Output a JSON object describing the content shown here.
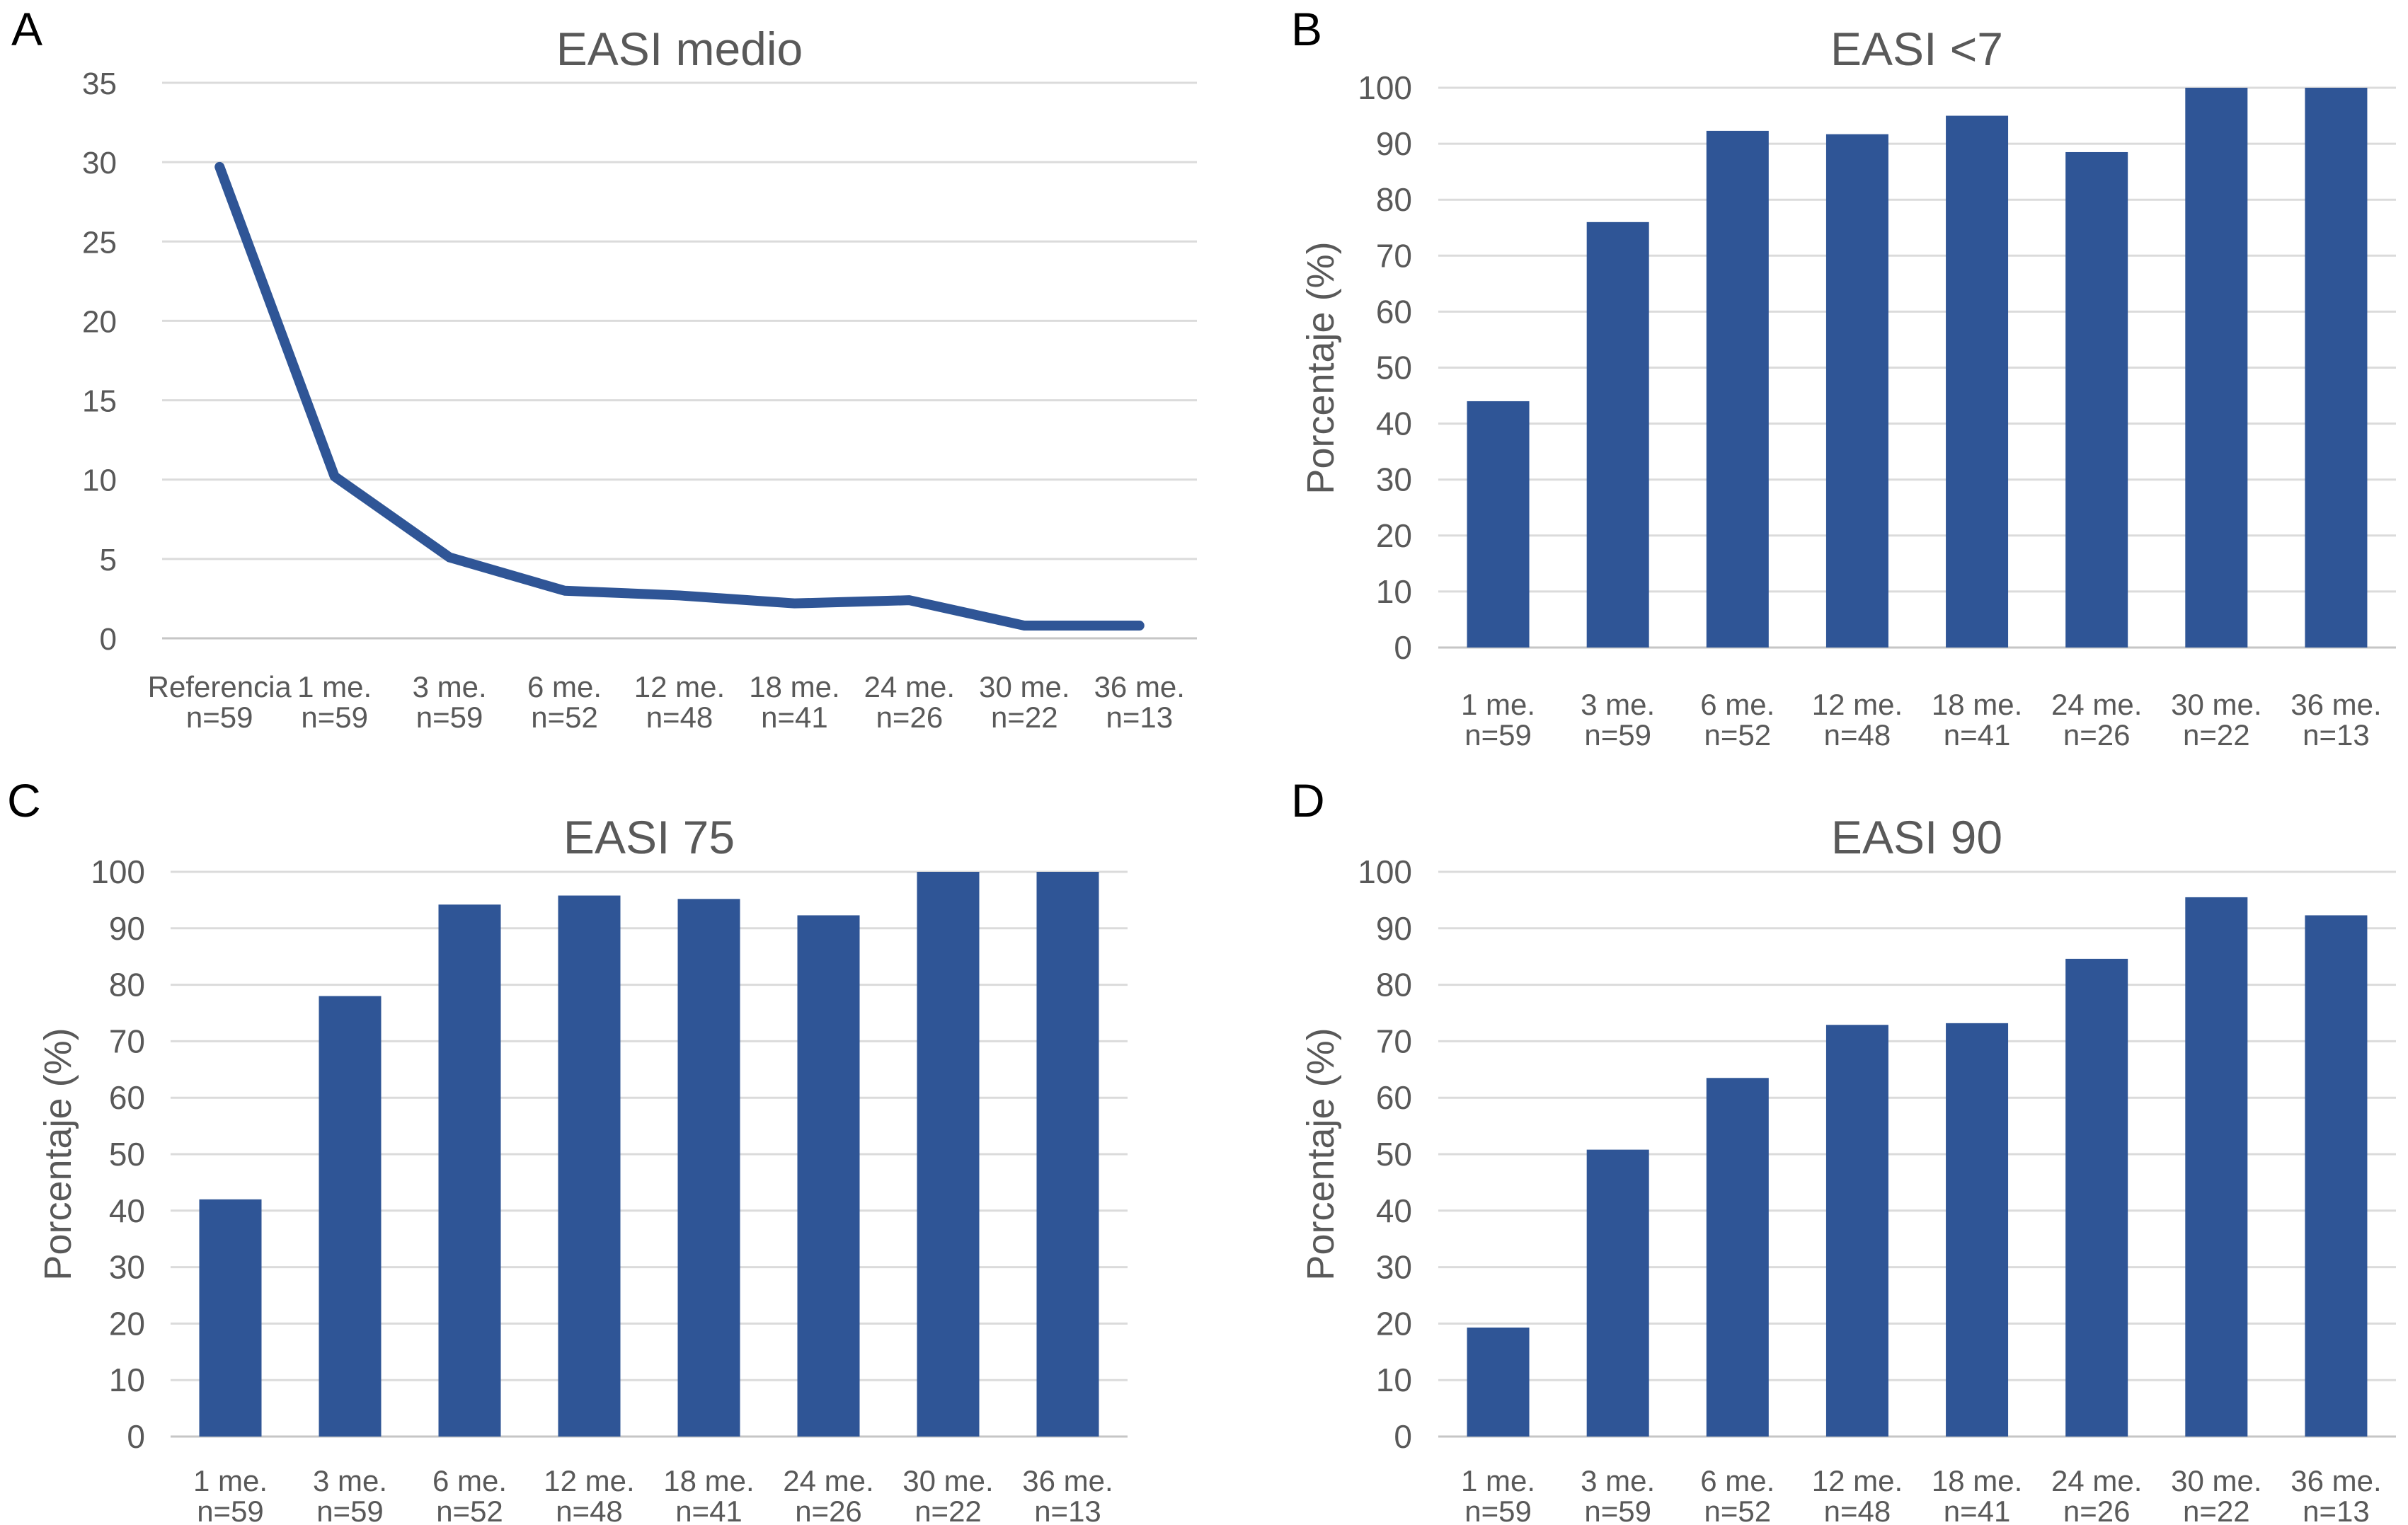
{
  "page": {
    "background": "#ffffff",
    "description": "Four-panel EASI outcomes figure"
  },
  "colors": {
    "series_blue": "#2F5596",
    "gridline": "#DBDBDB",
    "zero_axis_line": "#C6C6C6",
    "text_gray": "#595959",
    "panel_letter_black": "#000000"
  },
  "chart_data": [
    {
      "panel_letter": "A",
      "type": "line",
      "title": "EASI medio",
      "ylabel": "",
      "ylim": [
        0,
        35
      ],
      "ytick_step": 5,
      "grid": true,
      "legend": "none",
      "categories": [
        "Referencia",
        "1 me.",
        "3 me.",
        "6 me.",
        "12 me.",
        "18 me.",
        "24 me.",
        "30 me.",
        "36 me."
      ],
      "counts": [
        "n=59",
        "n=59",
        "n=59",
        "n=52",
        "n=48",
        "n=41",
        "n=26",
        "n=22",
        "n=13"
      ],
      "values": [
        29.7,
        10.2,
        5.1,
        3.0,
        2.7,
        2.2,
        2.4,
        0.8,
        0.8
      ]
    },
    {
      "panel_letter": "B",
      "type": "bar",
      "title": "EASI <7",
      "ylabel": "Porcentaje (%)",
      "ylim": [
        0,
        100
      ],
      "ytick_step": 10,
      "grid": true,
      "legend": "none",
      "categories": [
        "1 me.",
        "3 me.",
        "6 me.",
        "12 me.",
        "18 me.",
        "24 me.",
        "30 me.",
        "36 me."
      ],
      "counts": [
        "n=59",
        "n=59",
        "n=52",
        "n=48",
        "n=41",
        "n=26",
        "n=22",
        "n=13"
      ],
      "values": [
        44,
        76,
        92.3,
        91.7,
        95,
        88.5,
        100,
        100
      ]
    },
    {
      "panel_letter": "C",
      "type": "bar",
      "title": "EASI 75",
      "ylabel": "Porcentaje (%)",
      "ylim": [
        0,
        100
      ],
      "ytick_step": 10,
      "grid": true,
      "legend": "none",
      "categories": [
        "1 me.",
        "3 me.",
        "6 me.",
        "12 me.",
        "18 me.",
        "24 me.",
        "30 me.",
        "36 me."
      ],
      "counts": [
        "n=59",
        "n=59",
        "n=52",
        "n=48",
        "n=41",
        "n=26",
        "n=22",
        "n=13"
      ],
      "values": [
        42,
        78,
        94.2,
        95.8,
        95.2,
        92.3,
        100,
        100
      ]
    },
    {
      "panel_letter": "D",
      "type": "bar",
      "title": "EASI 90",
      "ylabel": "Porcentaje (%)",
      "ylim": [
        0,
        100
      ],
      "ytick_step": 10,
      "grid": true,
      "legend": "none",
      "categories": [
        "1 me.",
        "3 me.",
        "6 me.",
        "12 me.",
        "18 me.",
        "24 me.",
        "30 me.",
        "36 me."
      ],
      "counts": [
        "n=59",
        "n=59",
        "n=52",
        "n=48",
        "n=41",
        "n=26",
        "n=22",
        "n=13"
      ],
      "values": [
        19.3,
        50.8,
        63.5,
        72.9,
        73.2,
        84.6,
        95.5,
        92.3
      ]
    }
  ]
}
